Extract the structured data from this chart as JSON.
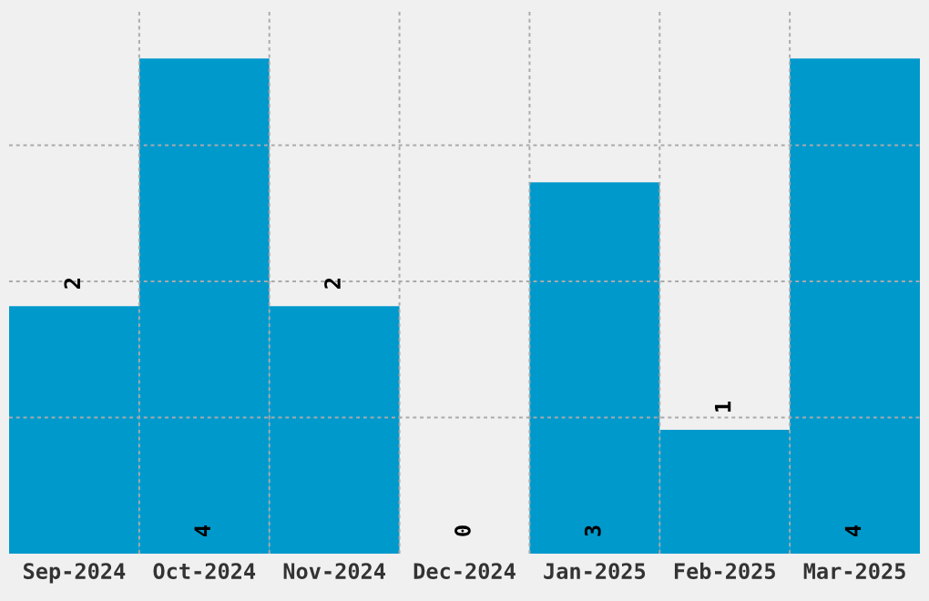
{
  "chart_data": {
    "type": "bar",
    "categories": [
      "Sep-2024",
      "Oct-2024",
      "Nov-2024",
      "Dec-2024",
      "Jan-2025",
      "Feb-2025",
      "Mar-2025"
    ],
    "values": [
      2,
      4,
      2,
      0,
      3,
      1,
      4
    ],
    "color": "#0099cc",
    "ylim": [
      0,
      4.4
    ],
    "yticks": [
      {
        "value": 1.1,
        "label": null
      },
      {
        "value": 2.2,
        "label": null
      },
      {
        "value": 3.3,
        "label": null
      }
    ],
    "tick_labels": "x",
    "grid": true,
    "data_labels": true
  }
}
